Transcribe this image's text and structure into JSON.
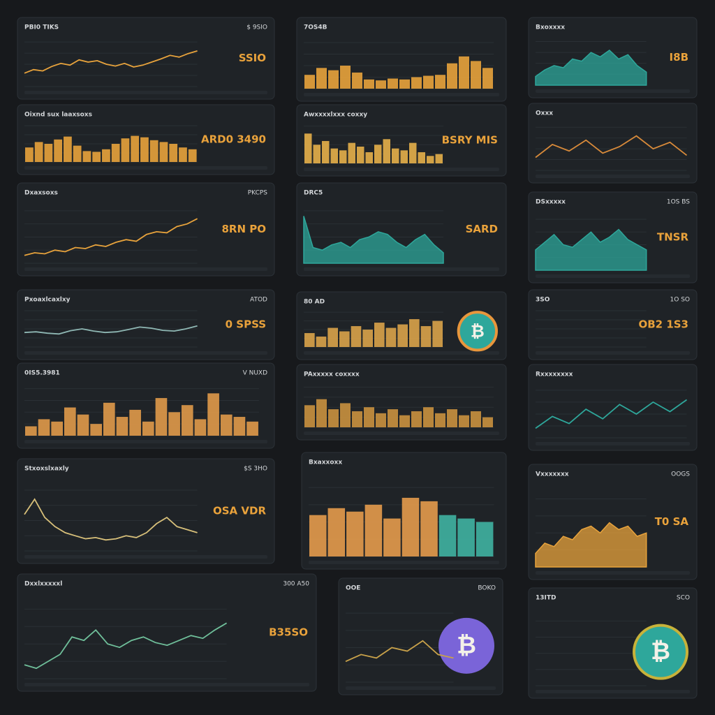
{
  "panels": [
    {
      "title": "PBI0 TIKS",
      "label": "$ 9SIO",
      "value": "SSIO",
      "chart": {
        "type": "line",
        "color": "#e8a33c",
        "ylim": [
          0,
          100
        ],
        "values": [
          30,
          38,
          35,
          45,
          52,
          48,
          60,
          55,
          58,
          50,
          46,
          52,
          44,
          48,
          55,
          62,
          70,
          66,
          74,
          80
        ]
      }
    },
    {
      "title": "Oixnd sux laaxsoxs",
      "value": "ARD0 3490",
      "chart": {
        "type": "bar",
        "color": "#e8a33c",
        "ylim": [
          0,
          100
        ],
        "values": [
          40,
          55,
          50,
          62,
          70,
          45,
          30,
          28,
          35,
          50,
          65,
          72,
          68,
          60,
          55,
          50,
          40,
          35
        ]
      }
    },
    {
      "title": "Dxaxsoxs",
      "label": "PKCPS",
      "value": "8RN PO",
      "chart": {
        "type": "line",
        "color": "#e8a33c",
        "ylim": [
          0,
          100
        ],
        "values": [
          15,
          20,
          18,
          25,
          22,
          30,
          28,
          35,
          32,
          40,
          45,
          42,
          55,
          60,
          58,
          70,
          75,
          85
        ]
      }
    },
    {
      "title": "Pxoaxlcaxlxy",
      "label": "ATOD",
      "value": "0 SPSS",
      "chart": {
        "type": "line",
        "color": "#8fb8b4",
        "ylim": [
          0,
          100
        ],
        "values": [
          40,
          42,
          38,
          36,
          45,
          50,
          44,
          40,
          42,
          48,
          55,
          52,
          46,
          44,
          50,
          58
        ]
      }
    },
    {
      "title": "0IS5.3981",
      "label": "V NUXD",
      "chart": {
        "type": "bar",
        "color": "#e09a4a",
        "ylim": [
          0,
          100
        ],
        "values": [
          20,
          35,
          30,
          60,
          45,
          25,
          70,
          40,
          55,
          30,
          80,
          50,
          65,
          35,
          90,
          45,
          40,
          30
        ]
      }
    },
    {
      "title": "Stxoxslxaxly",
      "label": "$S 3HO",
      "value": "OSA VDR",
      "chart": {
        "type": "line",
        "color": "#d8c07a",
        "ylim": [
          0,
          100
        ],
        "values": [
          60,
          85,
          55,
          40,
          30,
          25,
          20,
          22,
          18,
          20,
          25,
          22,
          30,
          45,
          55,
          40,
          35,
          30
        ]
      }
    },
    {
      "title": "Dxxlxxxxxl",
      "label": "300 A50",
      "value": "B35SO",
      "chart": {
        "type": "line",
        "color": "#6fbf9a",
        "ylim": [
          0,
          100
        ],
        "values": [
          20,
          15,
          25,
          35,
          60,
          55,
          70,
          50,
          45,
          55,
          60,
          52,
          48,
          55,
          62,
          58,
          70,
          80
        ]
      }
    },
    {
      "title": "7OS4B",
      "chart": {
        "type": "bar",
        "color": "#e8a33c",
        "ylim": [
          0,
          100
        ],
        "values": [
          30,
          45,
          40,
          50,
          35,
          20,
          18,
          22,
          20,
          25,
          28,
          30,
          55,
          70,
          60,
          45
        ]
      }
    },
    {
      "title": "Awxxxxlxxx coxxy",
      "value": "BSRY MIS",
      "chart": {
        "type": "bar",
        "color": "#e6b04a",
        "ylim": [
          0,
          100
        ],
        "values": [
          80,
          50,
          60,
          40,
          35,
          55,
          45,
          30,
          50,
          65,
          40,
          35,
          55,
          30,
          20,
          25
        ]
      }
    },
    {
      "title": "DRC5",
      "value": "SARD",
      "chart": {
        "type": "area",
        "color": "#2ea79b",
        "ylim": [
          0,
          100
        ],
        "values": [
          90,
          30,
          25,
          35,
          40,
          30,
          45,
          50,
          60,
          55,
          40,
          30,
          45,
          55,
          35,
          20
        ]
      }
    },
    {
      "title": "80 AD",
      "coin": "₿",
      "chart": {
        "type": "bar",
        "color": "#d9a34a",
        "ylim": [
          0,
          100
        ],
        "values": [
          40,
          30,
          55,
          45,
          60,
          50,
          70,
          55,
          65,
          80,
          60,
          75
        ]
      }
    },
    {
      "title": "PAxxxxx coxxxx",
      "chart": {
        "type": "bar",
        "color": "#c9913f",
        "ylim": [
          0,
          100
        ],
        "values": [
          55,
          70,
          45,
          60,
          40,
          50,
          35,
          45,
          30,
          40,
          50,
          35,
          45,
          30,
          40,
          25
        ]
      }
    },
    {
      "title": "Bxaxxoxx",
      "chart": {
        "type": "bar",
        "color": "#e49b4c",
        "ylim": [
          0,
          100
        ],
        "values": [
          60,
          70,
          65,
          75,
          55,
          85,
          80,
          60,
          55,
          50
        ]
      }
    },
    {
      "title": "OOE",
      "label": "BOKO",
      "coin": "₿",
      "chart": {
        "type": "line",
        "color": "#c9a24a",
        "ylim": [
          0,
          100
        ],
        "values": [
          30,
          40,
          35,
          50,
          45,
          60,
          40,
          35
        ]
      }
    },
    {
      "title": "Bxoxxxx",
      "value": "I8B",
      "chart": {
        "type": "area",
        "color": "#2ea79b",
        "ylim": [
          0,
          100
        ],
        "values": [
          20,
          35,
          45,
          40,
          60,
          55,
          75,
          65,
          80,
          60,
          70,
          45,
          30
        ]
      }
    },
    {
      "title": "Oxxx",
      "chart": {
        "type": "line",
        "color": "#d88a3a",
        "ylim": [
          0,
          100
        ],
        "values": [
          30,
          60,
          45,
          70,
          40,
          55,
          80,
          50,
          65,
          35
        ]
      }
    },
    {
      "title": "DSxxxxx",
      "label": "1OS BS",
      "value": "TNSR",
      "chart": {
        "type": "area",
        "color": "#2ea79b",
        "ylim": [
          0,
          100
        ],
        "values": [
          40,
          55,
          70,
          50,
          45,
          60,
          75,
          55,
          65,
          80,
          60,
          50,
          40
        ]
      }
    },
    {
      "title": "3SO",
      "label": "1O SO",
      "value": "OB2 1S3"
    },
    {
      "title": "Rxxxxxxxx",
      "chart": {
        "type": "line",
        "color": "#2ea79b",
        "ylim": [
          0,
          100
        ],
        "values": [
          20,
          45,
          30,
          60,
          40,
          70,
          50,
          75,
          55,
          80
        ]
      }
    },
    {
      "title": "Vxxxxxxx",
      "label": "OOGS",
      "value": "T0 SA",
      "chart": {
        "type": "area",
        "color": "#e8a33c",
        "ylim": [
          0,
          100
        ],
        "values": [
          20,
          35,
          30,
          45,
          40,
          55,
          60,
          50,
          65,
          55,
          60,
          45,
          50
        ]
      }
    },
    {
      "title": "13ITD",
      "label": "SCO",
      "coin": "₿"
    }
  ]
}
